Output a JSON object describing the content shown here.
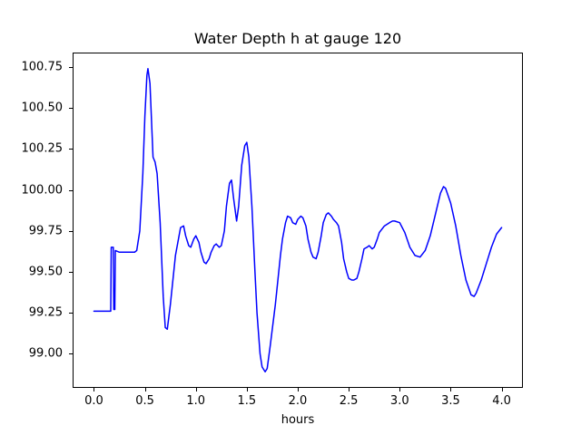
{
  "figure": {
    "background": "#ffffff"
  },
  "chart_data": {
    "type": "line",
    "title": "Water Depth h at gauge 120",
    "xlabel": "hours",
    "ylabel": "",
    "legend": "none",
    "grid": false,
    "line_color": "#0000ff",
    "line_width": 1.5,
    "xlim": [
      -0.2,
      4.2
    ],
    "ylim": [
      98.7975,
      100.8325
    ],
    "xticks": [
      0.0,
      0.5,
      1.0,
      1.5,
      2.0,
      2.5,
      3.0,
      3.5,
      4.0
    ],
    "xtick_labels": [
      "0.0",
      "0.5",
      "1.0",
      "1.5",
      "2.0",
      "2.5",
      "3.0",
      "3.5",
      "4.0"
    ],
    "yticks": [
      99.0,
      99.25,
      99.5,
      99.75,
      100.0,
      100.25,
      100.5,
      100.75
    ],
    "ytick_labels": [
      "99.00",
      "99.25",
      "99.50",
      "99.75",
      "100.00",
      "100.25",
      "100.50",
      "100.75"
    ],
    "series_name": "Water depth h",
    "x": [
      0.0,
      0.05,
      0.1,
      0.15,
      0.165,
      0.17,
      0.19,
      0.195,
      0.205,
      0.21,
      0.25,
      0.3,
      0.35,
      0.4,
      0.42,
      0.45,
      0.48,
      0.5,
      0.52,
      0.53,
      0.55,
      0.57,
      0.58,
      0.6,
      0.62,
      0.65,
      0.68,
      0.7,
      0.72,
      0.75,
      0.8,
      0.85,
      0.88,
      0.9,
      0.93,
      0.95,
      0.98,
      1.0,
      1.03,
      1.05,
      1.08,
      1.1,
      1.13,
      1.15,
      1.18,
      1.2,
      1.23,
      1.25,
      1.28,
      1.3,
      1.33,
      1.35,
      1.37,
      1.4,
      1.42,
      1.45,
      1.48,
      1.5,
      1.52,
      1.55,
      1.58,
      1.6,
      1.63,
      1.65,
      1.68,
      1.7,
      1.73,
      1.75,
      1.78,
      1.8,
      1.83,
      1.85,
      1.88,
      1.9,
      1.93,
      1.95,
      1.98,
      2.0,
      2.03,
      2.05,
      2.08,
      2.1,
      2.13,
      2.15,
      2.18,
      2.2,
      2.23,
      2.25,
      2.28,
      2.3,
      2.33,
      2.35,
      2.38,
      2.4,
      2.43,
      2.45,
      2.48,
      2.5,
      2.53,
      2.55,
      2.58,
      2.6,
      2.63,
      2.65,
      2.68,
      2.7,
      2.73,
      2.75,
      2.78,
      2.8,
      2.85,
      2.9,
      2.93,
      2.95,
      3.0,
      3.05,
      3.1,
      3.15,
      3.2,
      3.25,
      3.3,
      3.35,
      3.4,
      3.43,
      3.45,
      3.5,
      3.55,
      3.6,
      3.65,
      3.7,
      3.73,
      3.75,
      3.8,
      3.85,
      3.9,
      3.95,
      4.0
    ],
    "y": [
      99.26,
      99.26,
      99.26,
      99.26,
      99.26,
      99.65,
      99.65,
      99.27,
      99.27,
      99.63,
      99.62,
      99.62,
      99.62,
      99.62,
      99.63,
      99.75,
      100.1,
      100.45,
      100.7,
      100.74,
      100.65,
      100.35,
      100.2,
      100.17,
      100.1,
      99.8,
      99.35,
      99.16,
      99.15,
      99.3,
      99.6,
      99.77,
      99.78,
      99.72,
      99.66,
      99.65,
      99.7,
      99.72,
      99.68,
      99.62,
      99.56,
      99.55,
      99.58,
      99.62,
      99.66,
      99.67,
      99.65,
      99.66,
      99.75,
      99.9,
      100.04,
      100.06,
      99.95,
      99.81,
      99.9,
      100.15,
      100.27,
      100.29,
      100.2,
      99.9,
      99.5,
      99.25,
      99.0,
      98.92,
      98.89,
      98.91,
      99.05,
      99.15,
      99.3,
      99.42,
      99.6,
      99.7,
      99.8,
      99.84,
      99.83,
      99.8,
      99.79,
      99.82,
      99.84,
      99.83,
      99.78,
      99.7,
      99.62,
      99.59,
      99.58,
      99.62,
      99.72,
      99.8,
      99.85,
      99.86,
      99.84,
      99.82,
      99.8,
      99.78,
      99.68,
      99.58,
      99.5,
      99.46,
      99.45,
      99.45,
      99.46,
      99.5,
      99.58,
      99.64,
      99.65,
      99.66,
      99.64,
      99.65,
      99.7,
      99.74,
      99.78,
      99.8,
      99.81,
      99.81,
      99.8,
      99.74,
      99.65,
      99.6,
      99.59,
      99.63,
      99.72,
      99.85,
      99.98,
      100.02,
      100.01,
      99.92,
      99.78,
      99.6,
      99.45,
      99.36,
      99.35,
      99.37,
      99.45,
      99.55,
      99.65,
      99.73,
      99.77
    ]
  }
}
